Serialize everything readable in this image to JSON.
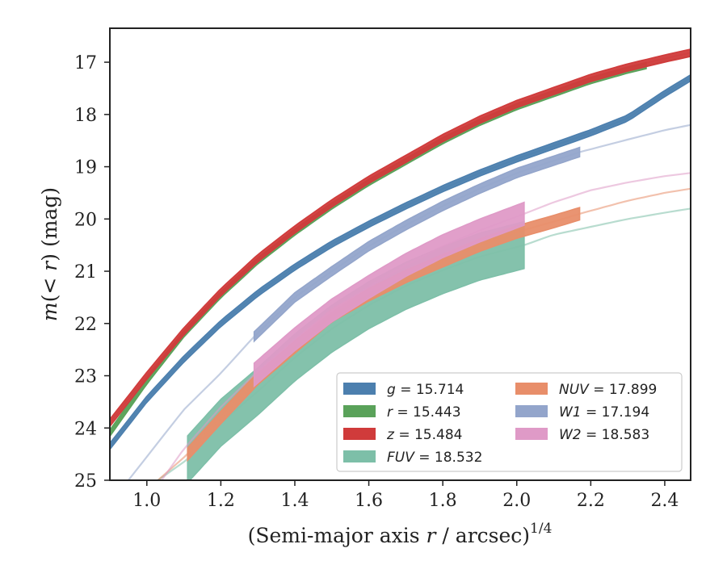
{
  "chart_data": {
    "type": "line",
    "xlabel": "(Semi-major axis r / arcsec)^{1/4}",
    "xlabel_parts": {
      "before": "(Semi-major axis ",
      "var": "r",
      "mid": " / arcsec)",
      "sup": "1/4"
    },
    "ylabel": "m(< r) (mag)",
    "ylabel_parts": {
      "m": "m",
      "open": "(",
      "lt": "< ",
      "r": "r",
      "close": ") (mag)"
    },
    "xlim": [
      0.9,
      2.47
    ],
    "ylim": [
      25.0,
      16.35
    ],
    "y_inverted": true,
    "xticks": [
      1.0,
      1.2,
      1.4,
      1.6,
      1.8,
      2.0,
      2.2,
      2.4
    ],
    "xtick_labels": [
      "1.0",
      "1.2",
      "1.4",
      "1.6",
      "1.8",
      "2.0",
      "2.2",
      "2.4"
    ],
    "yticks": [
      17,
      18,
      19,
      20,
      21,
      22,
      23,
      24,
      25
    ],
    "ytick_labels": [
      "17",
      "18",
      "19",
      "20",
      "21",
      "22",
      "23",
      "24",
      "25"
    ],
    "grid": false,
    "legend_position": "lower-right",
    "series": [
      {
        "name": "g = 15.714",
        "label_var": "g",
        "label_value": "15.714",
        "color": "#4c7fae",
        "x": [
          0.9,
          1.0,
          1.1,
          1.2,
          1.3,
          1.4,
          1.5,
          1.6,
          1.7,
          1.8,
          1.9,
          2.0,
          2.1,
          2.2,
          2.3,
          2.4,
          2.47
        ],
        "y": [
          24.35,
          23.45,
          22.68,
          22.0,
          21.42,
          20.92,
          20.48,
          20.1,
          19.75,
          19.42,
          19.12,
          18.85,
          18.6,
          18.35,
          18.07,
          17.6,
          17.3
        ],
        "band": 0.06,
        "measured_xmax": 2.47
      },
      {
        "name": "r = 15.443",
        "label_var": "r",
        "label_value": "15.443",
        "color": "#5aa25a",
        "x": [
          0.9,
          1.0,
          1.1,
          1.2,
          1.3,
          1.4,
          1.5,
          1.6,
          1.7,
          1.8,
          1.9,
          2.0,
          2.1,
          2.2,
          2.3,
          2.4,
          2.47
        ],
        "y": [
          24.1,
          23.1,
          22.2,
          21.45,
          20.8,
          20.25,
          19.75,
          19.3,
          18.9,
          18.5,
          18.15,
          17.85,
          17.6,
          17.35,
          17.15,
          16.98,
          16.88
        ],
        "band": 0.06,
        "measured_xmax": 2.35
      },
      {
        "name": "z = 15.484",
        "label_var": "z",
        "label_value": "15.484",
        "color": "#d03b3b",
        "x": [
          0.9,
          1.0,
          1.1,
          1.2,
          1.3,
          1.4,
          1.5,
          1.6,
          1.7,
          1.8,
          1.9,
          2.0,
          2.1,
          2.2,
          2.3,
          2.4,
          2.47
        ],
        "y": [
          23.9,
          23.0,
          22.15,
          21.4,
          20.75,
          20.2,
          19.7,
          19.25,
          18.85,
          18.45,
          18.1,
          17.8,
          17.55,
          17.3,
          17.1,
          16.93,
          16.82
        ],
        "band": 0.07,
        "measured_xmax": 2.47
      },
      {
        "name": "FUV = 18.532",
        "label_var": "FUV",
        "label_value": "18.532",
        "color": "#7dbfa8",
        "x": [
          1.03,
          1.11,
          1.2,
          1.3,
          1.4,
          1.5,
          1.6,
          1.7,
          1.8,
          1.9,
          2.02,
          2.1,
          2.2,
          2.3,
          2.4,
          2.47
        ],
        "y": [
          25.0,
          24.6,
          23.9,
          23.3,
          22.65,
          22.1,
          21.65,
          21.28,
          20.98,
          20.72,
          20.5,
          20.3,
          20.15,
          20.0,
          19.88,
          19.8
        ],
        "band": 0.45,
        "measured_xmin": 1.11,
        "measured_xmax": 2.02
      },
      {
        "name": "NUV = 17.899",
        "label_var": "NUV",
        "label_value": "17.899",
        "color": "#e88e6a",
        "x": [
          1.03,
          1.11,
          1.2,
          1.3,
          1.4,
          1.5,
          1.6,
          1.7,
          1.8,
          1.9,
          2.0,
          2.1,
          2.17,
          2.3,
          2.4,
          2.47
        ],
        "y": [
          25.0,
          24.5,
          23.8,
          23.05,
          22.45,
          21.85,
          21.45,
          21.1,
          20.8,
          20.5,
          20.25,
          20.05,
          19.9,
          19.65,
          19.5,
          19.42
        ],
        "band": 0.12,
        "measured_xmin": 1.11,
        "measured_xmax": 2.17
      },
      {
        "name": "W1 = 17.194",
        "label_var": "W1",
        "label_value": "17.194",
        "color": "#93a5cb",
        "x": [
          0.95,
          1.0,
          1.1,
          1.2,
          1.29,
          1.4,
          1.5,
          1.6,
          1.7,
          1.8,
          1.9,
          2.0,
          2.17,
          2.3,
          2.4,
          2.47
        ],
        "y": [
          25.0,
          24.55,
          23.65,
          22.95,
          22.25,
          21.5,
          21.0,
          20.52,
          20.12,
          19.75,
          19.42,
          19.12,
          18.72,
          18.48,
          18.3,
          18.2
        ],
        "band": 0.09,
        "measured_xmin": 1.29,
        "measured_xmax": 2.17
      },
      {
        "name": "W2 = 18.583",
        "label_var": "W2",
        "label_value": "18.583",
        "color": "#df9ac7",
        "x": [
          1.04,
          1.1,
          1.2,
          1.29,
          1.4,
          1.5,
          1.6,
          1.7,
          1.8,
          1.9,
          2.02,
          2.1,
          2.2,
          2.3,
          2.4,
          2.47
        ],
        "y": [
          25.0,
          24.4,
          23.6,
          22.98,
          22.3,
          21.75,
          21.3,
          20.88,
          20.52,
          20.22,
          19.9,
          19.68,
          19.45,
          19.3,
          19.18,
          19.12
        ],
        "band": 0.22,
        "measured_xmin": 1.29,
        "measured_xmax": 2.02
      }
    ],
    "legend_order": [
      0,
      1,
      2,
      3,
      4,
      5,
      6
    ]
  }
}
